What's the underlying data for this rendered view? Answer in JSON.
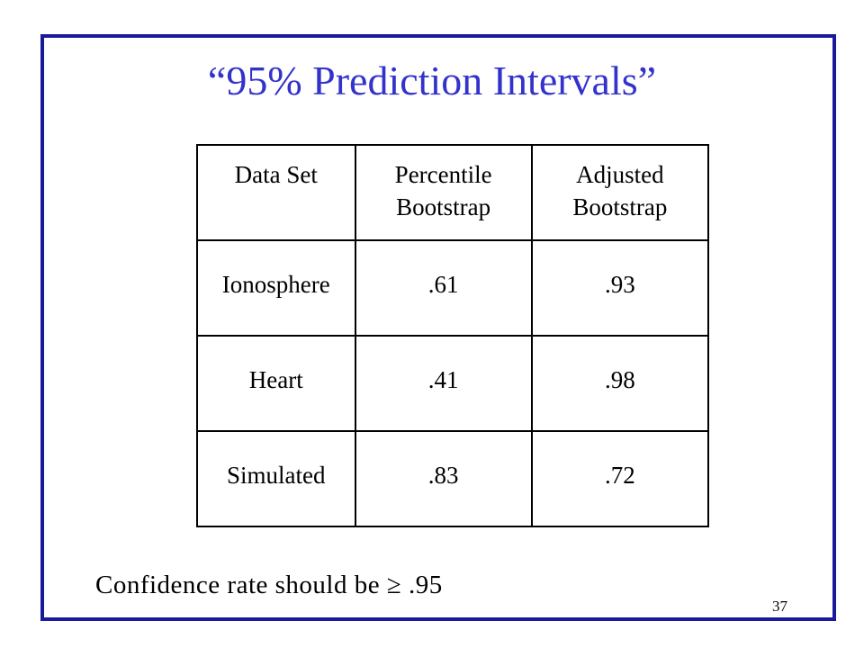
{
  "slide": {
    "title": "“95% Prediction Intervals”",
    "table": {
      "headers": [
        [
          "Data Set"
        ],
        [
          "Percentile",
          "Bootstrap"
        ],
        [
          "Adjusted",
          "Bootstrap"
        ]
      ],
      "rows": [
        {
          "data_set": "Ionosphere",
          "percentile": ".61",
          "adjusted": ".93"
        },
        {
          "data_set": "Heart",
          "percentile": ".41",
          "adjusted": ".98"
        },
        {
          "data_set": "Simulated",
          "percentile": ".83",
          "adjusted": ".72"
        }
      ]
    },
    "note": "Confidence rate should be ≥ .95",
    "page_number": "37",
    "colors": {
      "title": "#3333cc",
      "frame": "#1a1a9c"
    }
  }
}
